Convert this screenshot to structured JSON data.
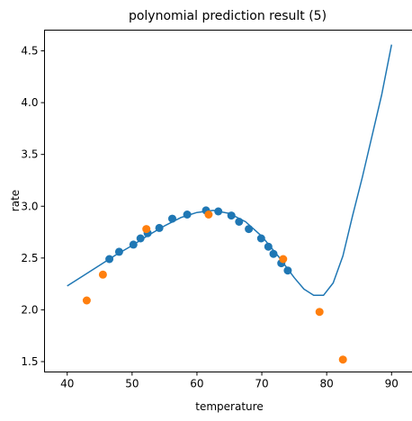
{
  "chart_data": {
    "type": "scatter",
    "title": "polynomial prediction result (5)",
    "xlabel": "temperature",
    "ylabel": "rate",
    "xlim": [
      36.5,
      93.5
    ],
    "ylim": [
      1.4,
      4.7
    ],
    "xticks": [
      40,
      50,
      60,
      70,
      80,
      90
    ],
    "yticks": [
      1.5,
      2.0,
      2.5,
      3.0,
      3.5,
      4.0,
      4.5
    ],
    "ytick_labels": [
      "1.5",
      "2.0",
      "2.5",
      "3.0",
      "3.5",
      "4.0",
      "4.5"
    ],
    "grid": false,
    "colors": {
      "blue": "#1f77b4",
      "orange": "#ff7f0e"
    },
    "series": [
      {
        "kind": "line",
        "color": "#1f77b4",
        "x": [
          40,
          42.5,
          45,
          47.5,
          50,
          52.5,
          55,
          57.5,
          60,
          62.5,
          65,
          67.5,
          70,
          72.5,
          75,
          76.5,
          78,
          79.5,
          81,
          82.5,
          84,
          85.5,
          87,
          88.5,
          90
        ],
        "y": [
          2.23,
          2.33,
          2.43,
          2.53,
          2.62,
          2.72,
          2.81,
          2.89,
          2.94,
          2.96,
          2.93,
          2.85,
          2.71,
          2.52,
          2.31,
          2.2,
          2.14,
          2.14,
          2.26,
          2.52,
          2.91,
          3.28,
          3.68,
          4.08,
          4.56
        ]
      },
      {
        "kind": "points",
        "color": "#1f77b4",
        "x": [
          46.5,
          48.0,
          50.2,
          51.3,
          52.4,
          54.2,
          56.2,
          58.5,
          61.4,
          63.3,
          65.3,
          66.5,
          68.0,
          69.9,
          71.0,
          71.8,
          73.0,
          74.0
        ],
        "y": [
          2.49,
          2.56,
          2.63,
          2.69,
          2.74,
          2.79,
          2.88,
          2.92,
          2.96,
          2.95,
          2.91,
          2.85,
          2.78,
          2.69,
          2.61,
          2.54,
          2.45,
          2.38
        ]
      },
      {
        "kind": "points",
        "color": "#ff7f0e",
        "x": [
          43.0,
          45.5,
          52.2,
          61.8,
          73.3,
          78.9,
          82.5
        ],
        "y": [
          2.09,
          2.34,
          2.78,
          2.92,
          2.49,
          1.98,
          1.52
        ]
      }
    ]
  }
}
